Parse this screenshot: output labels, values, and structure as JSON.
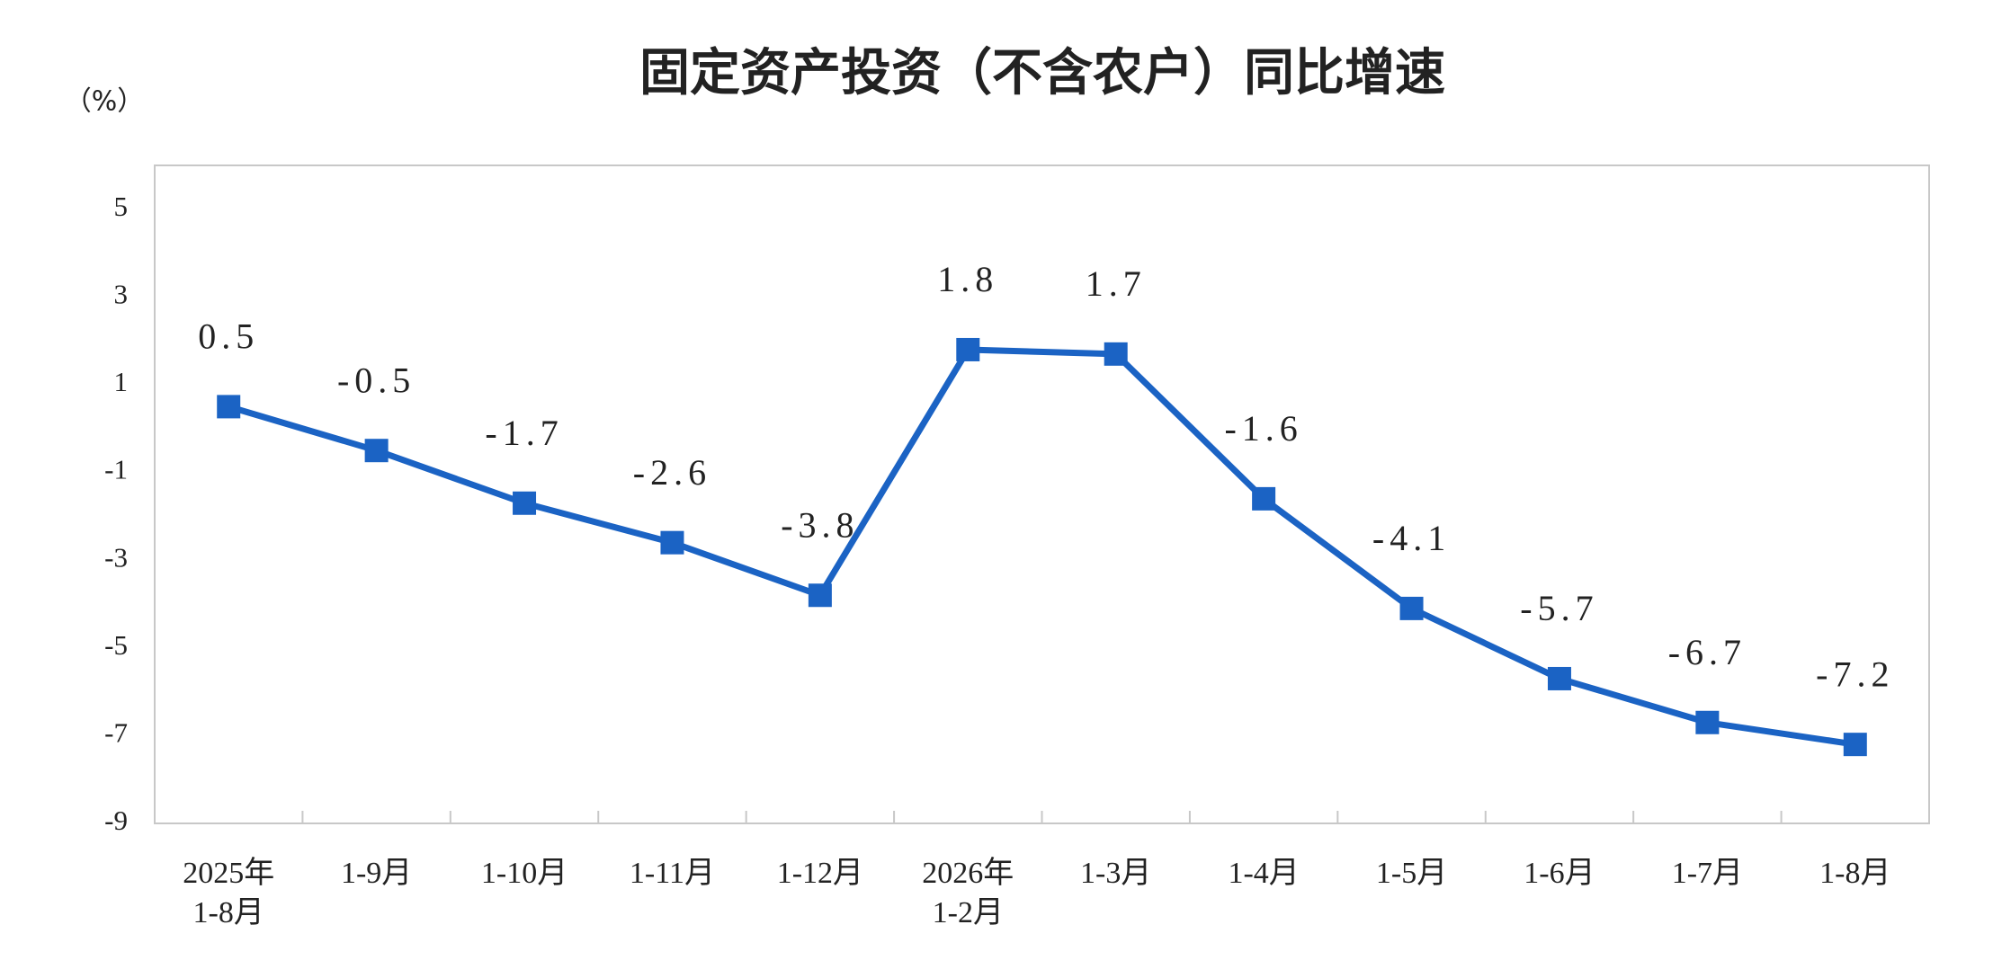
{
  "chart_data": {
    "type": "line",
    "title": "固定资产投资（不含农户）同比增速",
    "y_unit": "（%）",
    "categories": [
      "2025年\n1-8月",
      "1-9月",
      "1-10月",
      "1-11月",
      "1-12月",
      "2026年\n1-2月",
      "1-3月",
      "1-4月",
      "1-5月",
      "1-6月",
      "1-7月",
      "1-8月"
    ],
    "values": [
      0.5,
      -0.5,
      -1.7,
      -2.6,
      -3.8,
      1.8,
      1.7,
      -1.6,
      -4.1,
      -5.7,
      -6.7,
      -7.2
    ],
    "color": "#1b63c4",
    "ylim": [
      -9,
      6
    ],
    "yticks": [
      -9,
      -7,
      -5,
      -3,
      -1,
      1,
      3,
      5
    ],
    "grid": false,
    "data_labels": true
  }
}
